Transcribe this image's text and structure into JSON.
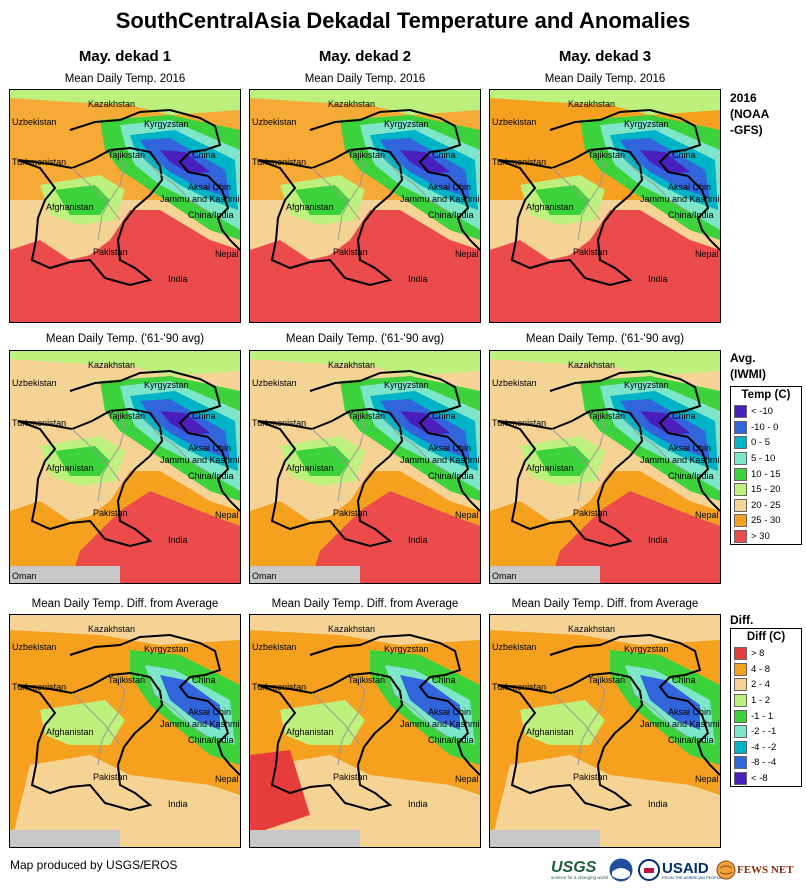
{
  "title": "SouthCentralAsia Dekadal Temperature and Anomalies",
  "columns": [
    {
      "title": "May. dekad 1"
    },
    {
      "title": "May. dekad 2"
    },
    {
      "title": "May. dekad 3"
    }
  ],
  "rows": [
    {
      "subtitle": "Mean Daily Temp. 2016",
      "label": [
        "2016",
        "(NOAA",
        "-GFS)"
      ]
    },
    {
      "subtitle": "Mean Daily Temp. ('61-'90 avg)",
      "label": [
        "Avg.",
        "(IWMI)"
      ]
    },
    {
      "subtitle": "Mean Daily Temp. Diff. from Average",
      "label": [
        "Diff."
      ]
    }
  ],
  "map_labels": [
    "Kazakhstan",
    "Uzbekistan",
    "Kyrgyzstan",
    "Tajikistan",
    "China",
    "Turkmenistan",
    "Aksai Chin",
    "Jammu and Kashmir",
    "Afghanistan",
    "China/India",
    "Pakistan",
    "Nepal",
    "India"
  ],
  "oman_label": "Oman",
  "temp_legend": {
    "title": "Temp (C)",
    "items": [
      {
        "label": "< -10",
        "color": "#4b1ebe"
      },
      {
        "label": "-10 - 0",
        "color": "#3264dc"
      },
      {
        "label": "0 - 5",
        "color": "#00b4c8"
      },
      {
        "label": "5 - 10",
        "color": "#7de6c8"
      },
      {
        "label": "10 - 15",
        "color": "#3cd23c"
      },
      {
        "label": "15 - 20",
        "color": "#bef07d"
      },
      {
        "label": "20 - 25",
        "color": "#f5d395"
      },
      {
        "label": "25 - 30",
        "color": "#f5a01e"
      },
      {
        "label": "> 30",
        "color": "#eb4b4b"
      }
    ]
  },
  "diff_legend": {
    "title": "Diff (C)",
    "items": [
      {
        "label": "> 8",
        "color": "#e63c3c"
      },
      {
        "label": "4 - 8",
        "color": "#f5a01e"
      },
      {
        "label": "2 - 4",
        "color": "#f5d395"
      },
      {
        "label": "1 - 2",
        "color": "#bef07d"
      },
      {
        "label": "-1 - 1",
        "color": "#3cd23c"
      },
      {
        "label": "-2 - -1",
        "color": "#7de6c8"
      },
      {
        "label": "-4 - -2",
        "color": "#00b4c8"
      },
      {
        "label": "-8 - -4",
        "color": "#3264dc"
      },
      {
        "label": "< -8",
        "color": "#4b1ebe"
      }
    ]
  },
  "credit": "Map produced by USGS/EROS",
  "logos": {
    "usgs": "USGS",
    "usgs_tagline": "science for a changing world",
    "noaa": "NOAA",
    "usaid": "USAID",
    "usaid_tagline": "FROM THE AMERICAN PEOPLE",
    "fewsnet": "FEWS NET"
  }
}
